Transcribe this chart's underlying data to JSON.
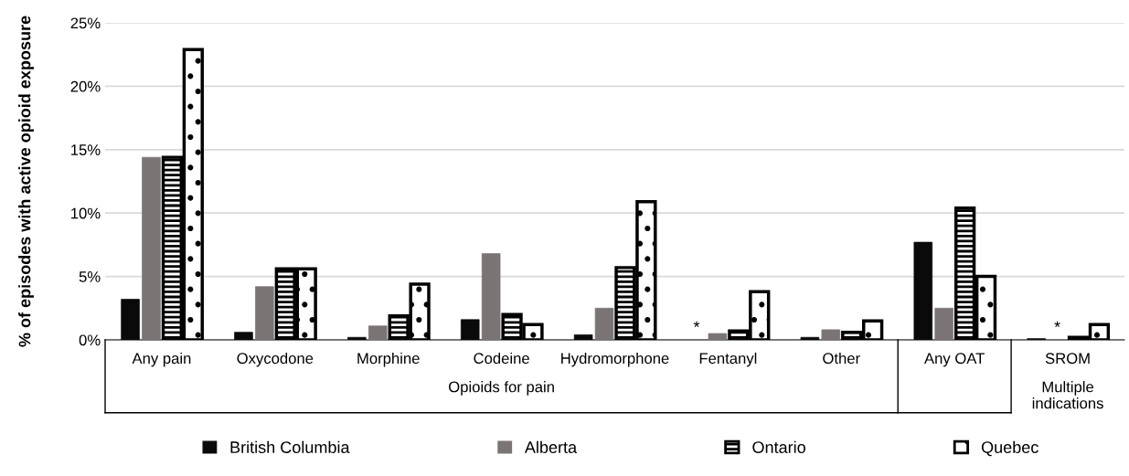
{
  "chart_data": {
    "type": "bar",
    "ylabel": "% of episodes with active opioid exposure",
    "categories": [
      "Any pain",
      "Oxycodone",
      "Morphine",
      "Codeine",
      "Hydromorphone",
      "Fentanyl",
      "Other",
      "Any OAT",
      "SROM"
    ],
    "series": [
      {
        "name": "British Columbia",
        "color": "#0a0a0a",
        "values": [
          3.2,
          0.6,
          0.2,
          1.6,
          0.4,
          null,
          0.2,
          7.7,
          0.1
        ]
      },
      {
        "name": "Alberta",
        "color": "#7a7474",
        "values": [
          14.4,
          4.2,
          1.1,
          6.8,
          2.5,
          0.5,
          0.8,
          2.5,
          null
        ]
      },
      {
        "name": "Ontario",
        "color": "#000000",
        "values": [
          14.4,
          5.6,
          1.9,
          2.0,
          5.7,
          0.7,
          0.6,
          10.4,
          0.2
        ]
      },
      {
        "name": "Quebec",
        "color": "#000000",
        "values": [
          22.9,
          5.6,
          4.4,
          1.2,
          10.9,
          3.8,
          1.5,
          5.0,
          1.2
        ]
      }
    ],
    "ylim": [
      0,
      25
    ],
    "yticks": [
      {
        "value": 0,
        "label": "0%"
      },
      {
        "value": 5,
        "label": "5%"
      },
      {
        "value": 10,
        "label": "10%"
      },
      {
        "value": 15,
        "label": "15%"
      },
      {
        "value": 20,
        "label": "20%"
      },
      {
        "value": 25,
        "label": "25%"
      }
    ],
    "grid": "y",
    "legend": "bottom",
    "annotations": [
      "*",
      "*",
      "Opioids for pain",
      "Multiple\nindications"
    ]
  }
}
